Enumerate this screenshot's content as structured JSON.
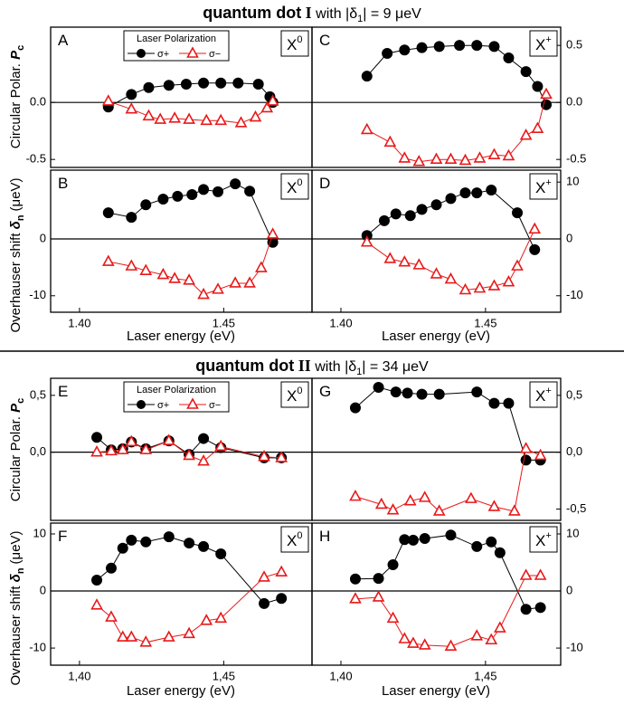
{
  "figure": {
    "titles": [
      {
        "bold": "quantum dot",
        "numeral": "I",
        "text": "with |δ",
        "sub": "1",
        "after": "| = 9 μeV"
      },
      {
        "bold": "quantum dot",
        "numeral": "II",
        "text": "with |δ",
        "sub": "1",
        "after": "| = 34 μeV"
      }
    ],
    "ylabel_pc": {
      "text": "Circular Polar.",
      "symbol": "P",
      "sub": "c"
    },
    "ylabel_shift": {
      "text": "Overhauser shift",
      "symbol": "δ",
      "sub": "n",
      "unit": "(μeV)"
    },
    "xlabel": "Laser energy (eV)"
  },
  "chart_data": [
    {
      "type": "scatter",
      "label": "A",
      "annotation": "X",
      "annotation_sup": "0",
      "legend_title": "Laser Polarization",
      "zero_line": true,
      "xlim": [
        1.39,
        1.4806
      ],
      "ylim": [
        -0.57,
        0.66
      ],
      "yticks": [
        -0.5,
        {
          "value": 0,
          "label": "0.0"
        }
      ],
      "series": [
        {
          "name": "σ+",
          "color": "#000000",
          "marker": "circle",
          "x": [
            1.41,
            1.418,
            1.424,
            1.431,
            1.437,
            1.443,
            1.449,
            1.455,
            1.462,
            1.466,
            1.467
          ],
          "values": [
            -0.04,
            0.07,
            0.13,
            0.15,
            0.16,
            0.17,
            0.17,
            0.17,
            0.16,
            0.05,
            0.0
          ]
        },
        {
          "name": "σ−",
          "color": "#e8191a",
          "marker": "triangle",
          "x": [
            1.41,
            1.418,
            1.424,
            1.428,
            1.433,
            1.438,
            1.444,
            1.449,
            1.456,
            1.461,
            1.465,
            1.467
          ],
          "values": [
            0.01,
            -0.06,
            -0.12,
            -0.15,
            -0.14,
            -0.15,
            -0.16,
            -0.16,
            -0.18,
            -0.13,
            -0.05,
            0.01
          ]
        }
      ]
    },
    {
      "type": "scatter",
      "label": "B",
      "annotation": "X",
      "annotation_sup": "0",
      "zero_line": true,
      "xlim": [
        1.39,
        1.4806
      ],
      "ylim": [
        -12.9,
        12.1
      ],
      "yticks": [
        -10,
        0
      ],
      "xticks": [
        {
          "value": 1.4,
          "label": "1.40"
        },
        {
          "value": 1.45,
          "label": "1.45"
        }
      ],
      "series": [
        {
          "name": "σ+",
          "color": "#000000",
          "marker": "circle",
          "x": [
            1.41,
            1.418,
            1.423,
            1.429,
            1.434,
            1.439,
            1.443,
            1.448,
            1.454,
            1.459,
            1.467
          ],
          "values": [
            4.6,
            3.8,
            6.0,
            7.0,
            7.5,
            7.8,
            8.7,
            8.3,
            9.7,
            8.4,
            -0.6
          ]
        },
        {
          "name": "σ−",
          "color": "#e8191a",
          "marker": "triangle",
          "x": [
            1.41,
            1.418,
            1.423,
            1.429,
            1.433,
            1.438,
            1.443,
            1.448,
            1.454,
            1.459,
            1.463,
            1.467
          ],
          "values": [
            -4.0,
            -4.8,
            -5.6,
            -6.3,
            -7.0,
            -7.3,
            -9.8,
            -8.9,
            -7.8,
            -7.8,
            -5.1,
            0.8
          ]
        }
      ]
    },
    {
      "type": "scatter",
      "label": "C",
      "annotation": "X",
      "annotation_sup": "+",
      "zero_line": true,
      "xlim": [
        1.39,
        1.476
      ],
      "ylim": [
        -0.57,
        0.66
      ],
      "yticks": [
        -0.5,
        {
          "value": 0,
          "label": "0.0"
        },
        0.5
      ],
      "series": [
        {
          "name": "σ+",
          "color": "#000000",
          "marker": "circle",
          "x": [
            1.409,
            1.416,
            1.422,
            1.428,
            1.434,
            1.441,
            1.447,
            1.453,
            1.458,
            1.464,
            1.468,
            1.471
          ],
          "values": [
            0.23,
            0.43,
            0.46,
            0.48,
            0.49,
            0.5,
            0.5,
            0.49,
            0.39,
            0.27,
            0.14,
            -0.02
          ]
        },
        {
          "name": "σ−",
          "color": "#e8191a",
          "marker": "triangle",
          "x": [
            1.409,
            1.417,
            1.422,
            1.427,
            1.433,
            1.438,
            1.443,
            1.448,
            1.453,
            1.458,
            1.464,
            1.468,
            1.471
          ],
          "values": [
            -0.24,
            -0.35,
            -0.49,
            -0.52,
            -0.5,
            -0.5,
            -0.51,
            -0.49,
            -0.46,
            -0.47,
            -0.29,
            -0.23,
            0.07
          ]
        }
      ]
    },
    {
      "type": "scatter",
      "label": "D",
      "annotation": "X",
      "annotation_sup": "+",
      "zero_line": true,
      "xlim": [
        1.39,
        1.476
      ],
      "ylim": [
        -12.9,
        12.1
      ],
      "yticks": [
        -10,
        0,
        10
      ],
      "xticks": [
        {
          "value": 1.4,
          "label": "1.40"
        },
        {
          "value": 1.45,
          "label": "1.45"
        }
      ],
      "series": [
        {
          "name": "σ+",
          "color": "#000000",
          "marker": "circle",
          "x": [
            1.409,
            1.415,
            1.419,
            1.424,
            1.428,
            1.433,
            1.438,
            1.443,
            1.447,
            1.452,
            1.461,
            1.467
          ],
          "values": [
            0.6,
            3.2,
            4.4,
            4.1,
            5.2,
            6.0,
            7.1,
            8.1,
            8.1,
            8.6,
            4.6,
            -1.9
          ]
        },
        {
          "name": "σ−",
          "color": "#e8191a",
          "marker": "triangle",
          "x": [
            1.409,
            1.417,
            1.422,
            1.427,
            1.433,
            1.438,
            1.443,
            1.448,
            1.453,
            1.458,
            1.461,
            1.467
          ],
          "values": [
            -0.6,
            -3.5,
            -4.1,
            -4.6,
            -6.2,
            -7.1,
            -9.0,
            -8.7,
            -8.3,
            -7.6,
            -4.8,
            1.7
          ]
        }
      ]
    },
    {
      "type": "scatter",
      "label": "E",
      "annotation": "X",
      "annotation_sup": "0",
      "legend_title": "Laser Polarization",
      "zero_line": true,
      "xlim": [
        1.39,
        1.4806
      ],
      "ylim": [
        -0.6,
        0.65
      ],
      "yticks": [
        {
          "value": 0,
          "label": "0,0"
        },
        {
          "value": 0.5,
          "label": "0,5"
        }
      ],
      "series": [
        {
          "name": "σ+",
          "color": "#000000",
          "marker": "circle",
          "x": [
            1.406,
            1.411,
            1.415,
            1.418,
            1.423,
            1.431,
            1.438,
            1.443,
            1.449,
            1.464,
            1.47
          ],
          "values": [
            0.13,
            0.02,
            0.03,
            0.09,
            0.03,
            0.1,
            -0.02,
            0.12,
            0.04,
            -0.05,
            -0.05
          ]
        },
        {
          "name": "σ−",
          "color": "#e8191a",
          "marker": "triangle",
          "x": [
            1.406,
            1.411,
            1.415,
            1.418,
            1.423,
            1.431,
            1.438,
            1.443,
            1.449,
            1.464,
            1.47
          ],
          "values": [
            0.0,
            0.01,
            0.02,
            0.09,
            0.02,
            0.1,
            -0.03,
            -0.08,
            0.05,
            -0.04,
            -0.05
          ]
        }
      ]
    },
    {
      "type": "scatter",
      "label": "F",
      "annotation": "X",
      "annotation_sup": "0",
      "zero_line": true,
      "xlim": [
        1.39,
        1.4806
      ],
      "ylim": [
        -13,
        11.9
      ],
      "yticks": [
        -10,
        0,
        10
      ],
      "xticks": [
        {
          "value": 1.4,
          "label": "1,40"
        },
        {
          "value": 1.45,
          "label": "1,45"
        }
      ],
      "series": [
        {
          "name": "σ+",
          "color": "#000000",
          "marker": "circle",
          "x": [
            1.406,
            1.411,
            1.415,
            1.418,
            1.423,
            1.431,
            1.438,
            1.443,
            1.449,
            1.464,
            1.47
          ],
          "values": [
            1.9,
            4.0,
            7.5,
            8.9,
            8.6,
            9.5,
            8.4,
            7.8,
            6.5,
            -2.2,
            -1.3
          ]
        },
        {
          "name": "σ−",
          "color": "#e8191a",
          "marker": "triangle",
          "x": [
            1.406,
            1.411,
            1.415,
            1.418,
            1.423,
            1.431,
            1.438,
            1.444,
            1.449,
            1.464,
            1.47
          ],
          "values": [
            -2.5,
            -4.6,
            -8.1,
            -8.1,
            -9.0,
            -8.1,
            -7.5,
            -5.2,
            -4.8,
            2.4,
            3.3
          ]
        }
      ]
    },
    {
      "type": "scatter",
      "label": "G",
      "annotation": "X",
      "annotation_sup": "+",
      "zero_line": true,
      "xlim": [
        1.39,
        1.476
      ],
      "ylim": [
        -0.6,
        0.65
      ],
      "yticks": [
        {
          "value": -0.5,
          "label": "-0,5"
        },
        {
          "value": 0,
          "label": "0,0"
        },
        {
          "value": 0.5,
          "label": "0,5"
        }
      ],
      "series": [
        {
          "name": "σ+",
          "color": "#000000",
          "marker": "circle",
          "x": [
            1.405,
            1.413,
            1.419,
            1.423,
            1.428,
            1.434,
            1.447,
            1.453,
            1.458,
            1.464,
            1.469
          ],
          "values": [
            0.39,
            0.57,
            0.53,
            0.52,
            0.51,
            0.51,
            0.53,
            0.43,
            0.43,
            -0.07,
            -0.07
          ]
        },
        {
          "name": "σ−",
          "color": "#e8191a",
          "marker": "triangle",
          "x": [
            1.405,
            1.414,
            1.418,
            1.424,
            1.429,
            1.434,
            1.445,
            1.453,
            1.46,
            1.464,
            1.469
          ],
          "values": [
            -0.39,
            -0.46,
            -0.51,
            -0.43,
            -0.4,
            -0.52,
            -0.41,
            -0.48,
            -0.52,
            0.03,
            -0.03
          ]
        }
      ]
    },
    {
      "type": "scatter",
      "label": "H",
      "annotation": "X",
      "annotation_sup": "+",
      "zero_line": true,
      "xlim": [
        1.39,
        1.476
      ],
      "ylim": [
        -13,
        11.9
      ],
      "yticks": [
        -10,
        0,
        10
      ],
      "xticks": [
        {
          "value": 1.4,
          "label": "1,40"
        },
        {
          "value": 1.45,
          "label": "1,45"
        }
      ],
      "series": [
        {
          "name": "σ+",
          "color": "#000000",
          "marker": "circle",
          "x": [
            1.405,
            1.413,
            1.418,
            1.422,
            1.425,
            1.429,
            1.438,
            1.447,
            1.452,
            1.455,
            1.464,
            1.469
          ],
          "values": [
            2.1,
            2.2,
            4.6,
            9.0,
            8.9,
            9.2,
            9.8,
            7.8,
            8.6,
            6.7,
            -3.2,
            -2.9
          ]
        },
        {
          "name": "σ−",
          "color": "#e8191a",
          "marker": "triangle",
          "x": [
            1.405,
            1.413,
            1.418,
            1.422,
            1.425,
            1.429,
            1.438,
            1.447,
            1.452,
            1.455,
            1.464,
            1.469
          ],
          "values": [
            -1.4,
            -1.1,
            -4.8,
            -8.4,
            -9.2,
            -9.5,
            -9.7,
            -7.9,
            -8.6,
            -6.5,
            2.7,
            2.7
          ]
        }
      ]
    }
  ]
}
